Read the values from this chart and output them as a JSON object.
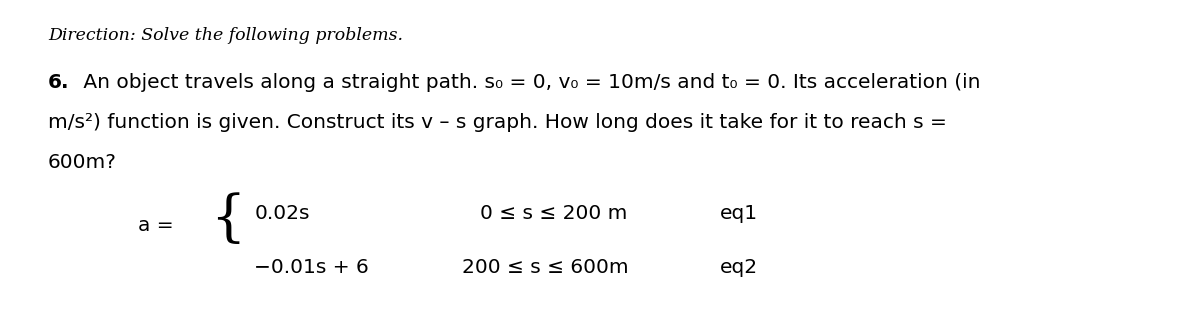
{
  "direction_text": "Direction: Solve the following problems.",
  "line1_bold": "6.",
  "line1_rest": " An object travels along a straight path. s₀ = 0, v₀ = 10m/s and t₀ = 0. Its acceleration (in",
  "line2": "m/s²) function is given. Construct its v – s graph. How long does it take for it to reach s =",
  "line3": "600m?",
  "eq_label": "a =",
  "eq1_expr": "0.02s",
  "eq1_range": "0 ≤ s ≤ 200 m",
  "eq1_tag": "eq1",
  "eq2_expr": "−0.01s + 6",
  "eq2_range": "200 ≤ s ≤ 600m",
  "eq2_tag": "eq2",
  "background_color": "#ffffff",
  "text_color": "#000000",
  "dir_fontsize": 12.5,
  "body_fontsize": 14.5,
  "eq_fontsize": 14.5
}
